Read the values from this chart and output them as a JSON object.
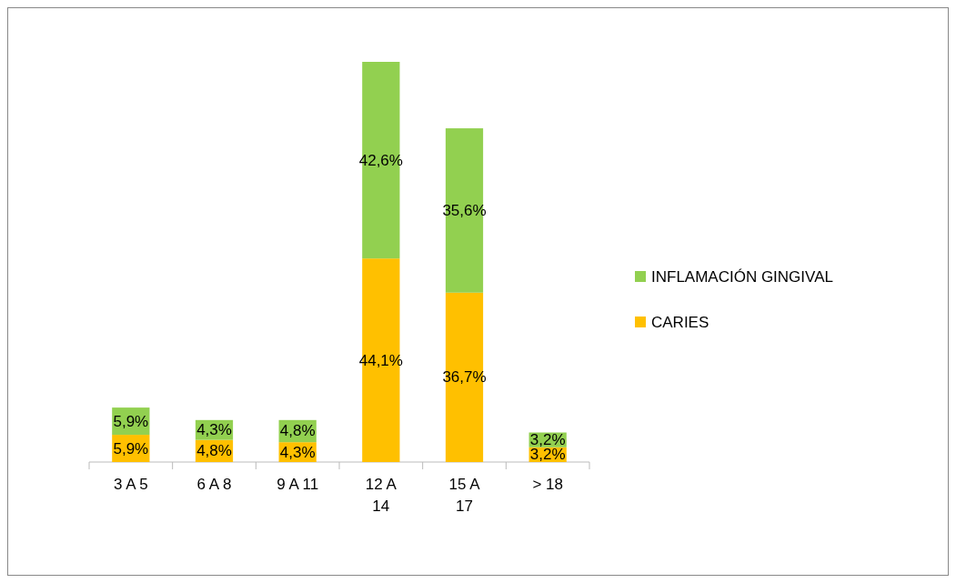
{
  "chart_data": {
    "type": "bar",
    "stacked": true,
    "categories": [
      "3 A 5",
      "6 A 8",
      "9 A 11",
      "12 A 14",
      "15 A 17",
      "> 18"
    ],
    "series": [
      {
        "name": "CARIES",
        "color": "#ffc000",
        "values": [
          5.9,
          4.8,
          4.3,
          44.1,
          36.7,
          3.2
        ],
        "value_labels": [
          "5,9%",
          "4,8%",
          "4,3%",
          "44,1%",
          "36,7%",
          "3,2%"
        ]
      },
      {
        "name": "INFLAMACIÓN GINGIVAL",
        "color": "#92d050",
        "values": [
          5.9,
          4.3,
          4.8,
          42.6,
          35.6,
          3.2
        ],
        "value_labels": [
          "5,9%",
          "4,3%",
          "4,8%",
          "42,6%",
          "35,6%",
          "3,2%"
        ]
      }
    ],
    "legend": "right"
  }
}
